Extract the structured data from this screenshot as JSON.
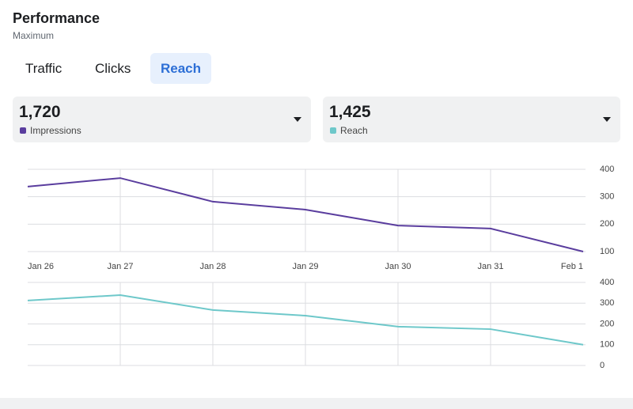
{
  "header": {
    "title": "Performance",
    "subtitle": "Maximum"
  },
  "tabs": [
    "Traffic",
    "Clicks",
    "Reach"
  ],
  "metrics": [
    "1,720",
    "1,425"
  ],
  "chart_data": [
    {
      "type": "line",
      "categories": [
        "Jan 26",
        "Jan 27",
        "Jan 28",
        "Jan 29",
        "Jan 30",
        "Jan 31",
        "Feb 1"
      ],
      "series": [
        {
          "name": "Impressions",
          "color": "#5a3d9e",
          "values": [
            337,
            368,
            282,
            253,
            195,
            184,
            100
          ]
        }
      ],
      "ylim": [
        100,
        400
      ],
      "yticks": [
        100,
        200,
        300,
        400
      ],
      "grid": true
    },
    {
      "type": "line",
      "series": [
        {
          "name": "Reach",
          "color": "#6ec8ca",
          "values": [
            313,
            339,
            267,
            240,
            187,
            175,
            100
          ]
        }
      ],
      "ylim": [
        0,
        400
      ],
      "yticks": [
        0,
        100,
        200,
        300,
        400
      ],
      "grid": true
    }
  ]
}
